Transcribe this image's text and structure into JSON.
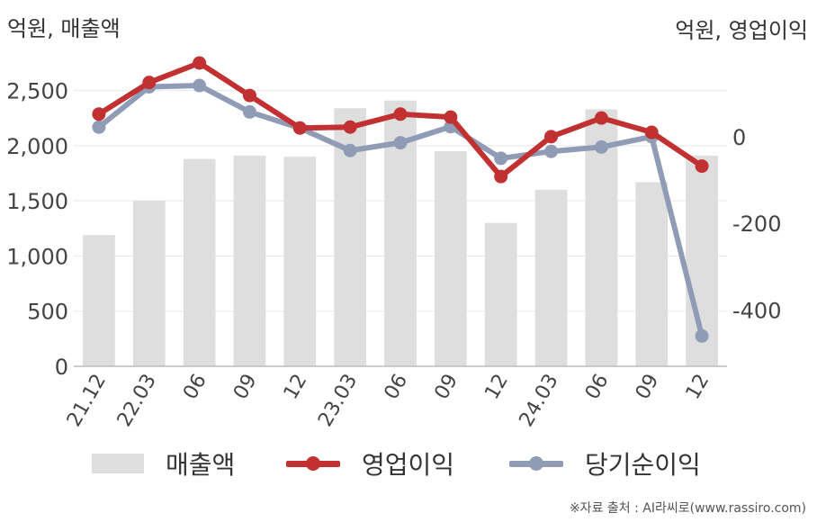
{
  "chart_data": {
    "type": "bar+line",
    "left_unit": "억원, 매출액",
    "right_unit": "억원, 영업이익",
    "categories": [
      "21.12",
      "22.03",
      "06",
      "09",
      "12",
      "23.03",
      "06",
      "09",
      "12",
      "24.03",
      "06",
      "09",
      "12"
    ],
    "left_axis": {
      "ylim": [
        0,
        2750
      ],
      "ticks": [
        0,
        500,
        1000,
        1500,
        2000,
        2500
      ],
      "tick_labels": [
        "0",
        "500",
        "1,000",
        "1,500",
        "2,000",
        "2,500"
      ]
    },
    "right_axis": {
      "ylim": [
        -530,
        170
      ],
      "ticks": [
        0,
        -200,
        -400
      ],
      "tick_labels": [
        "0",
        "-200",
        "-400"
      ]
    },
    "series": [
      {
        "name": "매출액",
        "kind": "bar",
        "axis": "left",
        "color": "#dedede",
        "values": [
          1190,
          1500,
          1880,
          1910,
          1900,
          2340,
          2410,
          1950,
          1300,
          1600,
          2330,
          1670,
          1910
        ]
      },
      {
        "name": "영업이익",
        "kind": "line",
        "axis": "right",
        "color": "#c23131",
        "values": [
          52,
          125,
          170,
          95,
          20,
          22,
          52,
          45,
          -92,
          0,
          43,
          10,
          -68
        ]
      },
      {
        "name": "당기순이익",
        "kind": "line",
        "axis": "right",
        "color": "#909cb6",
        "values": [
          22,
          115,
          118,
          57,
          20,
          -32,
          -14,
          23,
          -50,
          -34,
          -24,
          0,
          -460
        ]
      }
    ],
    "grid": true,
    "legend_position": "bottom"
  },
  "legend": {
    "bar_label": "매출액",
    "line1_label": "영업이익",
    "line2_label": "당기순이익"
  },
  "source_text": "※자료 출처 : AI라씨로(www.rassiro.com)"
}
